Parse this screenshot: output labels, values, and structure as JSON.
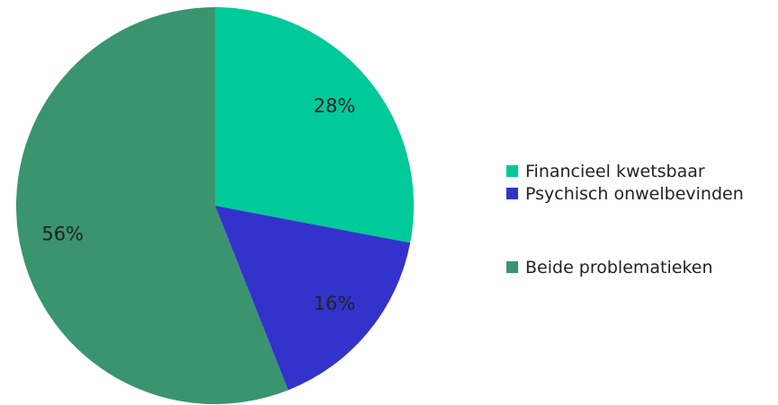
{
  "chart_data": {
    "type": "pie",
    "categories": [
      "Financieel kwetsbaar",
      "Psychisch onwelbevinden",
      "Beide problematieken"
    ],
    "values": [
      28,
      16,
      56
    ],
    "value_labels": [
      "28%",
      "16%",
      "56%"
    ],
    "colors": [
      "#00c99a",
      "#3333cc",
      "#3a946f"
    ],
    "legend": "right"
  }
}
